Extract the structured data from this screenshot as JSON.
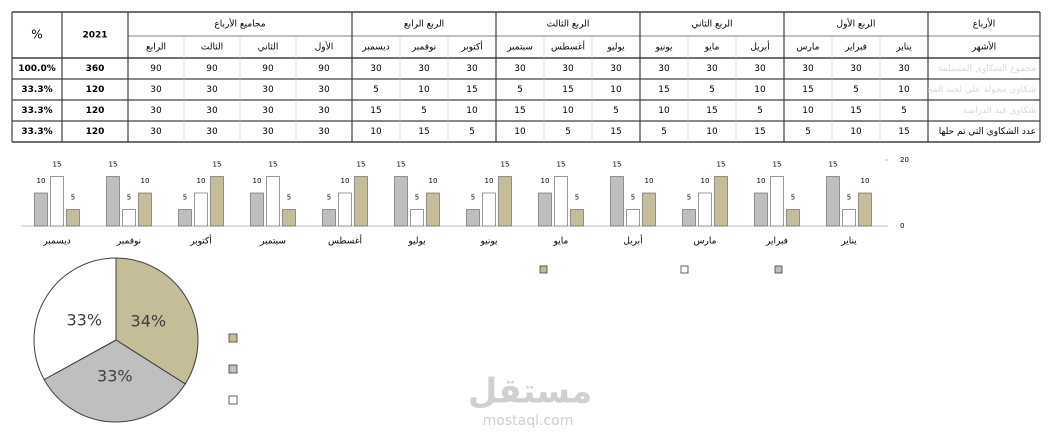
{
  "table": {
    "header": {
      "quarters_title": "الأرباع",
      "quarters": [
        "الربع الأول",
        "الربع الثاني",
        "الربع الثالث",
        "الربع الرابع"
      ],
      "sums_title": "مجاميع الأرباع",
      "year": "2021",
      "pct": "%",
      "months_title": "الأشهر",
      "months": [
        "يناير",
        "فبراير",
        "مارس",
        "أبريل",
        "مايو",
        "يونيو",
        "يوليو",
        "أغسطس",
        "سبتمبر",
        "أكتوبر",
        "نوفمبر",
        "ديسمبر"
      ],
      "sums": [
        "الأول",
        "الثاني",
        "الثالث",
        "الرابع"
      ]
    },
    "rows": [
      {
        "label": "مجموع الشكاوى المستلمة",
        "months": [
          30,
          30,
          30,
          30,
          30,
          30,
          30,
          30,
          30,
          30,
          30,
          30
        ],
        "sums": [
          90,
          90,
          90,
          90
        ],
        "total": 360,
        "pct": "100.0%"
      },
      {
        "label": "شكاوى محولة على لجنة المخالفات",
        "months": [
          10,
          5,
          15,
          10,
          5,
          15,
          10,
          15,
          5,
          15,
          10,
          5
        ],
        "sums": [
          30,
          30,
          30,
          30
        ],
        "total": 120,
        "pct": "33.3%"
      },
      {
        "label": "شكاوى قيد الدراسة",
        "months": [
          5,
          15,
          10,
          5,
          15,
          10,
          5,
          10,
          15,
          10,
          5,
          15
        ],
        "sums": [
          30,
          30,
          30,
          30
        ],
        "total": 120,
        "pct": "33.3%"
      },
      {
        "label": "عدد الشكاوي التي تم حلها",
        "months": [
          15,
          10,
          5,
          15,
          10,
          5,
          15,
          5,
          10,
          5,
          15,
          10
        ],
        "sums": [
          30,
          30,
          30,
          30
        ],
        "total": 120,
        "pct": "33.3%"
      }
    ]
  },
  "chart_data": [
    {
      "type": "bar",
      "categories": [
        "يناير",
        "فبراير",
        "مارس",
        "أبريل",
        "مايو",
        "يونيو",
        "يوليو",
        "أغسطس",
        "سبتمبر",
        "أكتوبر",
        "نوفمبر",
        "ديسمبر"
      ],
      "series": [
        {
          "color": "#bfbfbf",
          "values": [
            15,
            10,
            5,
            15,
            10,
            5,
            15,
            5,
            10,
            5,
            15,
            10
          ]
        },
        {
          "color": "#ffffff",
          "values": [
            5,
            15,
            10,
            5,
            15,
            10,
            5,
            10,
            15,
            10,
            5,
            15
          ]
        },
        {
          "color": "#c4bd97",
          "values": [
            10,
            5,
            15,
            10,
            5,
            15,
            10,
            15,
            5,
            15,
            10,
            5
          ]
        }
      ],
      "ylim": [
        0,
        20
      ],
      "yticks": [
        0,
        20
      ],
      "grid": false,
      "legend": "bottom"
    },
    {
      "type": "pie",
      "values": [
        34,
        33,
        33
      ],
      "value_labels": [
        "34%",
        "33%",
        "33%"
      ],
      "colors": [
        "#c4bd97",
        "#bfbfbf",
        "#ffffff"
      ],
      "legend": "right"
    }
  ],
  "watermark": {
    "brand": "مستقل",
    "site": "mostaql.com"
  }
}
